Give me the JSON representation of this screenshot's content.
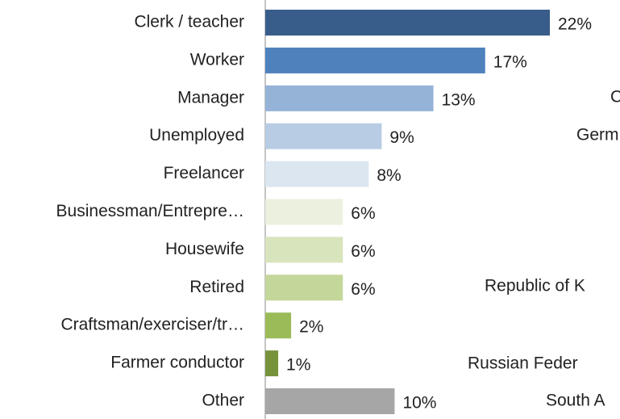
{
  "chart_data": {
    "type": "bar",
    "orientation": "horizontal",
    "categories": [
      "Clerk / teacher",
      "Worker",
      "Manager",
      "Unemployed",
      "Freelancer",
      "Businessman/Entrepre…",
      "Housewife",
      "Retired",
      "Craftsman/exerciser/tr…",
      "Farmer conductor",
      "Other"
    ],
    "values": [
      22,
      17,
      13,
      9,
      8,
      6,
      6,
      6,
      2,
      1,
      10
    ],
    "value_labels": [
      "22%",
      "17%",
      "13%",
      "9%",
      "8%",
      "6%",
      "6%",
      "6%",
      "2%",
      "1%",
      "10%"
    ],
    "colors": [
      "#385d8a",
      "#4f81bd",
      "#95b3d7",
      "#b8cce4",
      "#dce6f1",
      "#ebf1de",
      "#d8e4bc",
      "#c4d79b",
      "#9bbb59",
      "#76933c",
      "#a6a6a6"
    ],
    "annotations": [
      "C",
      "Germ",
      "Republic of K",
      "Russian Feder",
      "South A"
    ]
  }
}
